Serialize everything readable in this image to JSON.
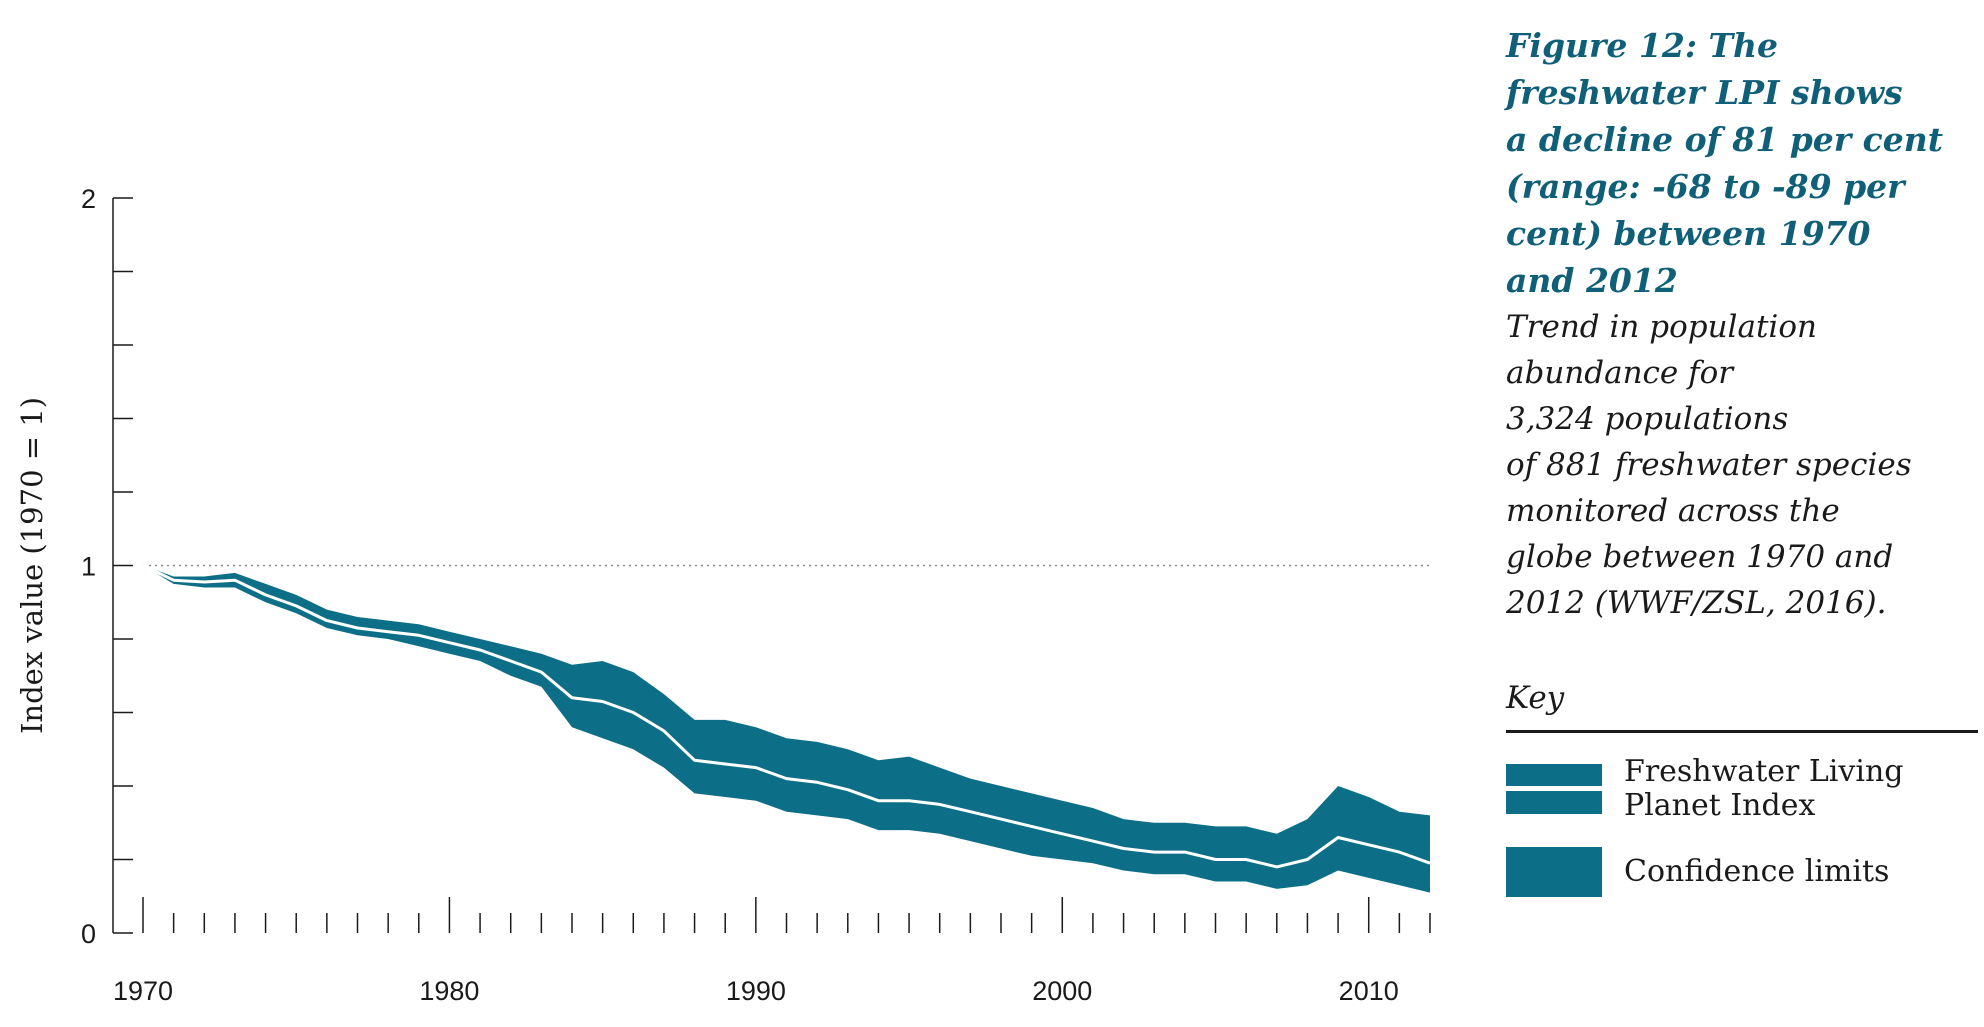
{
  "chart_data": {
    "type": "area",
    "ylabel": "Index value (1970 = 1)",
    "xlabel": "",
    "xlim": [
      1970,
      2012
    ],
    "ylim": [
      0,
      2
    ],
    "x_ticks": [
      "1970",
      "1980",
      "1990",
      "2000",
      "2010"
    ],
    "y_ticks": [
      "0",
      "1",
      "2"
    ],
    "baseline": 1,
    "colors": {
      "band": "#0d6f87",
      "index_line": "#ffffff",
      "baseline": "#8a8a8a"
    },
    "x": [
      1970,
      1971,
      1972,
      1973,
      1974,
      1975,
      1976,
      1977,
      1978,
      1979,
      1980,
      1981,
      1982,
      1983,
      1984,
      1985,
      1986,
      1987,
      1988,
      1989,
      1990,
      1991,
      1992,
      1993,
      1994,
      1995,
      1996,
      1997,
      1998,
      1999,
      2000,
      2001,
      2002,
      2003,
      2004,
      2005,
      2006,
      2007,
      2008,
      2009,
      2010,
      2011,
      2012
    ],
    "series": [
      {
        "name": "Freshwater Living Planet Index",
        "values": [
          1.0,
          0.96,
          0.955,
          0.96,
          0.92,
          0.89,
          0.85,
          0.83,
          0.82,
          0.81,
          0.79,
          0.77,
          0.74,
          0.71,
          0.64,
          0.63,
          0.6,
          0.55,
          0.47,
          0.46,
          0.45,
          0.42,
          0.41,
          0.39,
          0.36,
          0.36,
          0.35,
          0.33,
          0.31,
          0.29,
          0.27,
          0.25,
          0.23,
          0.22,
          0.22,
          0.2,
          0.2,
          0.18,
          0.2,
          0.26,
          0.24,
          0.22,
          0.19
        ]
      },
      {
        "name": "Confidence limits",
        "values_upper": [
          1.0,
          0.97,
          0.97,
          0.98,
          0.95,
          0.92,
          0.88,
          0.86,
          0.85,
          0.84,
          0.82,
          0.8,
          0.78,
          0.76,
          0.73,
          0.74,
          0.71,
          0.65,
          0.58,
          0.58,
          0.56,
          0.53,
          0.52,
          0.5,
          0.47,
          0.48,
          0.45,
          0.42,
          0.4,
          0.38,
          0.36,
          0.34,
          0.31,
          0.3,
          0.3,
          0.29,
          0.29,
          0.27,
          0.31,
          0.4,
          0.37,
          0.33,
          0.32
        ],
        "values_lower": [
          1.0,
          0.95,
          0.94,
          0.94,
          0.9,
          0.87,
          0.83,
          0.81,
          0.8,
          0.78,
          0.76,
          0.74,
          0.7,
          0.67,
          0.56,
          0.53,
          0.5,
          0.45,
          0.38,
          0.37,
          0.36,
          0.33,
          0.32,
          0.31,
          0.28,
          0.28,
          0.27,
          0.25,
          0.23,
          0.21,
          0.2,
          0.19,
          0.17,
          0.16,
          0.16,
          0.14,
          0.14,
          0.12,
          0.13,
          0.17,
          0.15,
          0.13,
          0.11
        ]
      }
    ]
  },
  "caption": {
    "title_lines": [
      "Figure 12: The",
      "freshwater LPI shows",
      "a decline of 81 per cent",
      "(range: -68 to -89 per",
      "cent) between 1970",
      "and 2012"
    ],
    "subtitle_lines": [
      "Trend in population",
      "abundance for",
      "3,324 populations",
      "of 881 freshwater species",
      "monitored across the",
      "globe between 1970 and",
      "2012 (WWF/ZSL, 2016)."
    ]
  },
  "key": {
    "title": "Key",
    "items": [
      {
        "label_lines": [
          "Freshwater Living",
          "Planet Index"
        ]
      },
      {
        "label_lines": [
          "Confidence limits"
        ]
      }
    ]
  }
}
